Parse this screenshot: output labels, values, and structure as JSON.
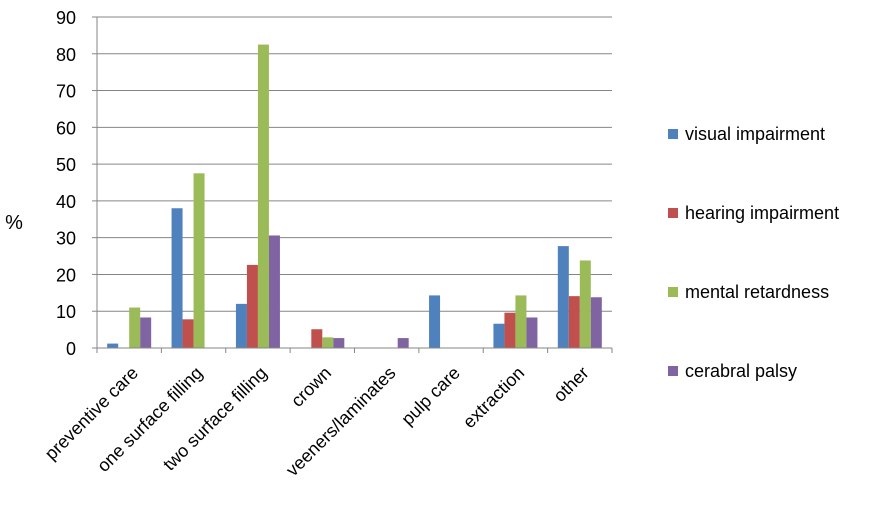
{
  "chart_data": {
    "type": "bar",
    "ylabel": "%",
    "ylim": [
      0,
      90
    ],
    "yticks": [
      0,
      10,
      20,
      30,
      40,
      50,
      60,
      70,
      80,
      90
    ],
    "grid": true,
    "legend_position": "right",
    "categories": [
      "preventive care",
      "one surface filling",
      "two surface filling",
      "crown",
      "veeners/laminates",
      "pulp care",
      "extraction",
      "other"
    ],
    "series": [
      {
        "name": "visual impairment",
        "color": "#4F81BD",
        "values": [
          1.2,
          38,
          12,
          0,
          0,
          14.3,
          6.6,
          27.7
        ]
      },
      {
        "name": "hearing impairment",
        "color": "#C0504D",
        "values": [
          0,
          7.8,
          22.6,
          5.1,
          0,
          0,
          9.6,
          14.1
        ]
      },
      {
        "name": "mental retardness",
        "color": "#9BBB59",
        "values": [
          11,
          47.5,
          82.5,
          2.9,
          0,
          0,
          14.3,
          23.8
        ]
      },
      {
        "name": "cerabral palsy",
        "color": "#8064A2",
        "values": [
          8.3,
          0,
          30.6,
          2.7,
          2.7,
          0,
          8.3,
          13.8
        ]
      }
    ]
  }
}
